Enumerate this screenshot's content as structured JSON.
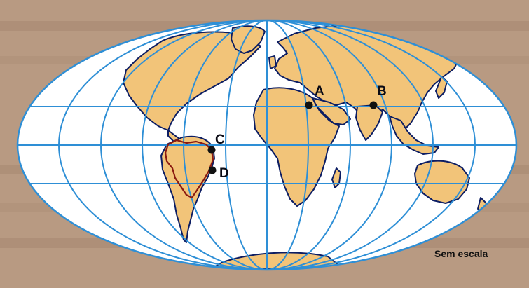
{
  "map": {
    "scale_note": "Sem escala",
    "points": [
      {
        "id": "A",
        "label": "A"
      },
      {
        "id": "B",
        "label": "B"
      },
      {
        "id": "C",
        "label": "C"
      },
      {
        "id": "D",
        "label": "D"
      }
    ],
    "colors": {
      "ocean": "#ffffff",
      "land": "#f2c479",
      "coastline": "#0c1d63",
      "graticule": "#2e8fd6",
      "border": "#8a1a10",
      "point": "#111111",
      "background": "#b89a82"
    }
  }
}
